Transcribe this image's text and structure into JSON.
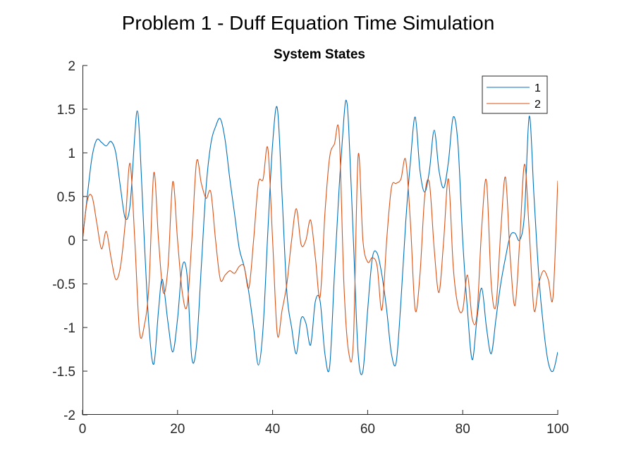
{
  "figure": {
    "suptitle": "Problem 1 - Duff Equation Time Simulation"
  },
  "chart_data": {
    "type": "line",
    "title": "System States",
    "xlabel": "",
    "ylabel": "",
    "xlim": [
      0,
      100
    ],
    "ylim": [
      -2,
      2
    ],
    "xticks": [
      0,
      20,
      40,
      60,
      80,
      100
    ],
    "yticks": [
      -2,
      -1.5,
      -1,
      -0.5,
      0,
      0.5,
      1,
      1.5,
      2
    ],
    "xtick_labels": [
      "0",
      "20",
      "40",
      "60",
      "80",
      "100"
    ],
    "ytick_labels": [
      "-2",
      "-1.5",
      "-1",
      "-0.5",
      "0",
      "0.5",
      "1",
      "1.5",
      "2"
    ],
    "grid": false,
    "legend_position": "top-right",
    "series": [
      {
        "name": "1",
        "color": "#0072BD",
        "x": [
          0,
          1,
          2,
          3,
          4,
          5,
          6,
          7,
          8,
          9,
          10,
          11,
          11.5,
          12,
          13,
          14,
          15,
          16,
          16.8,
          18,
          19,
          20,
          21,
          22,
          23,
          24,
          25,
          26,
          27,
          28,
          29,
          30,
          31,
          32,
          33,
          34,
          35,
          36,
          37,
          38,
          39,
          40,
          41,
          42,
          43,
          44,
          45,
          46,
          47,
          48,
          49,
          50,
          51,
          52,
          53,
          54,
          55,
          55.5,
          56,
          57,
          58,
          59,
          60,
          61,
          62,
          63,
          64,
          65,
          66,
          67,
          68,
          69,
          70,
          71,
          72,
          73,
          74,
          75,
          76,
          77,
          78,
          79,
          80,
          81,
          82,
          83,
          84,
          85,
          86,
          87,
          88,
          89,
          90,
          91,
          92,
          93,
          94,
          95,
          96,
          97,
          98,
          99,
          100
        ],
        "y": [
          0.0,
          0.5,
          0.95,
          1.15,
          1.12,
          1.08,
          1.13,
          1.0,
          0.6,
          0.25,
          0.4,
          1.2,
          1.48,
          1.2,
          0.0,
          -1.0,
          -1.42,
          -0.8,
          -0.45,
          -0.95,
          -1.28,
          -0.9,
          -0.3,
          -0.4,
          -1.35,
          -1.2,
          -0.3,
          0.6,
          1.1,
          1.3,
          1.39,
          1.15,
          0.7,
          0.3,
          -0.1,
          -0.3,
          -0.6,
          -1.0,
          -1.43,
          -1.0,
          0.1,
          1.1,
          1.51,
          0.5,
          -0.6,
          -1.0,
          -1.3,
          -0.9,
          -0.95,
          -1.2,
          -0.7,
          -0.7,
          -1.3,
          -1.45,
          -0.4,
          0.6,
          1.4,
          1.6,
          1.3,
          0.0,
          -1.3,
          -1.5,
          -0.8,
          -0.2,
          -0.15,
          -0.4,
          -0.8,
          -1.3,
          -1.4,
          -0.7,
          0.2,
          0.9,
          1.41,
          0.8,
          0.55,
          0.8,
          1.26,
          0.8,
          0.6,
          0.9,
          1.41,
          1.1,
          0.0,
          -0.8,
          -1.37,
          -0.9,
          -0.55,
          -1.0,
          -1.3,
          -0.9,
          -0.5,
          -0.2,
          0.05,
          0.08,
          0.0,
          0.3,
          1.42,
          0.5,
          -0.4,
          -1.0,
          -1.4,
          -1.5,
          -1.28
        ]
      },
      {
        "name": "2",
        "color": "#D95319",
        "x": [
          0,
          1,
          2,
          3,
          4,
          5,
          6,
          7,
          8,
          9,
          10,
          11,
          12,
          13,
          14,
          15,
          16,
          17,
          18,
          19,
          20,
          21,
          22,
          23,
          24,
          25,
          26,
          27,
          28,
          29,
          30,
          31,
          32,
          33,
          34,
          35,
          36,
          37,
          38,
          39,
          40,
          41,
          42,
          43,
          44,
          45,
          46,
          47,
          48,
          49,
          50,
          51,
          52,
          53,
          54,
          55,
          56,
          57,
          58,
          59,
          60,
          61,
          62,
          63,
          64,
          65,
          66,
          67,
          68,
          69,
          70,
          71,
          72,
          73,
          74,
          75,
          76,
          77,
          78,
          79,
          80,
          81,
          82,
          83,
          84,
          85,
          86,
          87,
          88,
          89,
          90,
          91,
          92,
          93,
          94,
          95,
          96,
          97,
          98,
          99,
          100
        ],
        "y": [
          0.0,
          0.45,
          0.5,
          0.2,
          -0.1,
          0.1,
          -0.2,
          -0.45,
          -0.3,
          0.2,
          0.88,
          0.0,
          -1.05,
          -0.98,
          -0.5,
          0.77,
          0.0,
          -0.6,
          -0.3,
          0.67,
          0.0,
          -0.6,
          -0.75,
          0.0,
          0.9,
          0.65,
          0.48,
          0.55,
          0.0,
          -0.45,
          -0.4,
          -0.35,
          -0.38,
          -0.3,
          -0.3,
          -0.55,
          0.0,
          0.65,
          0.7,
          1.05,
          0.0,
          -1.08,
          -0.8,
          -0.5,
          0.0,
          0.36,
          -0.05,
          0.0,
          0.23,
          -0.2,
          -0.65,
          0.3,
          0.95,
          1.1,
          1.22,
          -0.5,
          -1.28,
          -1.15,
          0.97,
          0.0,
          -0.25,
          -0.2,
          -0.3,
          -0.8,
          0.0,
          0.6,
          0.65,
          0.7,
          0.92,
          0.2,
          -0.8,
          -0.4,
          0.5,
          0.65,
          -0.1,
          -0.6,
          0.0,
          0.7,
          -0.3,
          -0.75,
          -0.8,
          -0.4,
          -0.9,
          -0.85,
          0.15,
          0.68,
          -0.5,
          -0.75,
          0.1,
          0.72,
          -0.2,
          -0.75,
          0.0,
          0.87,
          0.1,
          -0.8,
          -0.5,
          -0.35,
          -0.45,
          -0.65,
          0.68
        ]
      }
    ]
  }
}
